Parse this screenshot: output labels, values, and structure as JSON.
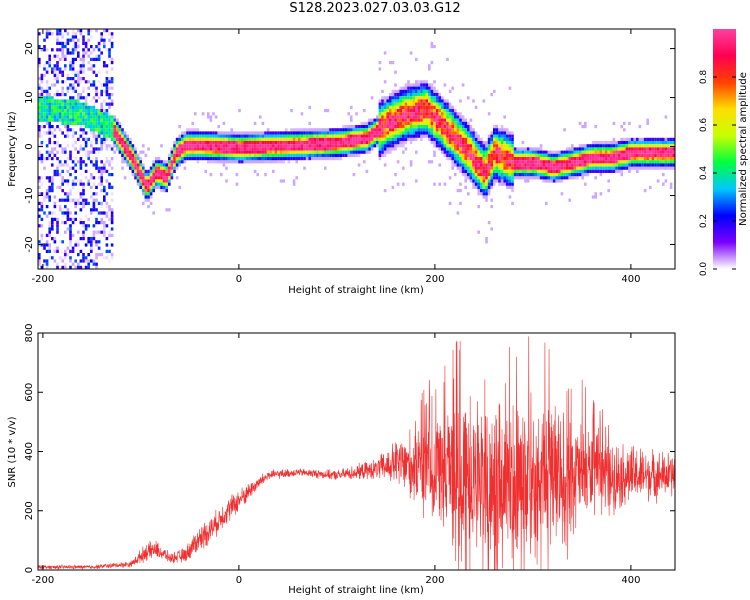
{
  "title": "S128.2023.027.03.03.G12",
  "chart_data": [
    {
      "type": "heatmap",
      "xlabel": "Height of straight line (km)",
      "ylabel": "Frequency (Hz)",
      "xlim": [
        -205,
        445
      ],
      "ylim": [
        -25,
        24
      ],
      "xticks": [
        "-200",
        "0",
        "200",
        "400"
      ],
      "xtick_values": [
        -200,
        0,
        200,
        400
      ],
      "yticks": [
        "20",
        "10",
        "0",
        "-10",
        "-20"
      ],
      "ytick_values": [
        20,
        10,
        0,
        -10,
        -20
      ],
      "ridge": {
        "x": [
          -200,
          -160,
          -130,
          -110,
          -95,
          -85,
          -75,
          -65,
          -55,
          -40,
          0,
          50,
          100,
          130,
          150,
          170,
          190,
          210,
          230,
          250,
          260,
          280,
          300,
          320,
          340,
          360,
          380,
          400,
          420,
          440
        ],
        "y": [
          8,
          7,
          4,
          -2,
          -8,
          -5,
          -6,
          -1,
          0.5,
          0.5,
          0,
          0.5,
          1,
          2,
          5,
          7,
          8,
          4,
          0,
          -5,
          -1,
          -3,
          -3,
          -4,
          -3,
          -2,
          -2,
          -1,
          -1,
          -1
        ]
      },
      "colorbar": {
        "label": "Normalized spectral amplitude",
        "range": [
          0.0,
          1.0
        ],
        "ticks": [
          "0.0",
          "0.2",
          "0.4",
          "0.6",
          "0.8"
        ],
        "tick_values": [
          0.0,
          0.2,
          0.4,
          0.6,
          0.8
        ],
        "colormap": [
          "#ffffff",
          "#7a00ff",
          "#0000ff",
          "#00c8ff",
          "#00ff40",
          "#c8ff00",
          "#ffdd00",
          "#ff4000",
          "#ff0050",
          "#ff40a0"
        ]
      },
      "grid": false
    },
    {
      "type": "line",
      "xlabel": "Height of straight line (km)",
      "ylabel": "SNR (10 * v/v)",
      "xlim": [
        -205,
        445
      ],
      "ylim": [
        0,
        800
      ],
      "xticks": [
        "-200",
        "0",
        "200",
        "400"
      ],
      "xtick_values": [
        -200,
        0,
        200,
        400
      ],
      "yticks": [
        "800",
        "600",
        "400",
        "200",
        "0"
      ],
      "ytick_values": [
        800,
        600,
        400,
        200,
        0
      ],
      "series": [
        {
          "color": "#f03030",
          "envelope": {
            "x": [
              -205,
              -150,
              -110,
              -95,
              -85,
              -70,
              -55,
              -45,
              -35,
              -25,
              -15,
              -5,
              5,
              15,
              30,
              60,
              100,
              140,
              160,
              180,
              200,
              220,
              240,
              260,
              280,
              300,
              320,
              340,
              360,
              380,
              400,
              420,
              445
            ],
            "center": [
              10,
              10,
              20,
              60,
              70,
              40,
              50,
              90,
              120,
              150,
              190,
              220,
              250,
              280,
              320,
              330,
              320,
              340,
              360,
              350,
              340,
              330,
              320,
              300,
              300,
              300,
              320,
              320,
              330,
              320,
              320,
              320,
              320
            ],
            "amp": [
              8,
              8,
              12,
              35,
              35,
              20,
              30,
              45,
              55,
              50,
              50,
              50,
              40,
              30,
              20,
              15,
              20,
              40,
              90,
              160,
              230,
              280,
              300,
              320,
              330,
              320,
              280,
              230,
              170,
              140,
              120,
              100,
              90
            ]
          }
        }
      ],
      "grid": false
    }
  ]
}
